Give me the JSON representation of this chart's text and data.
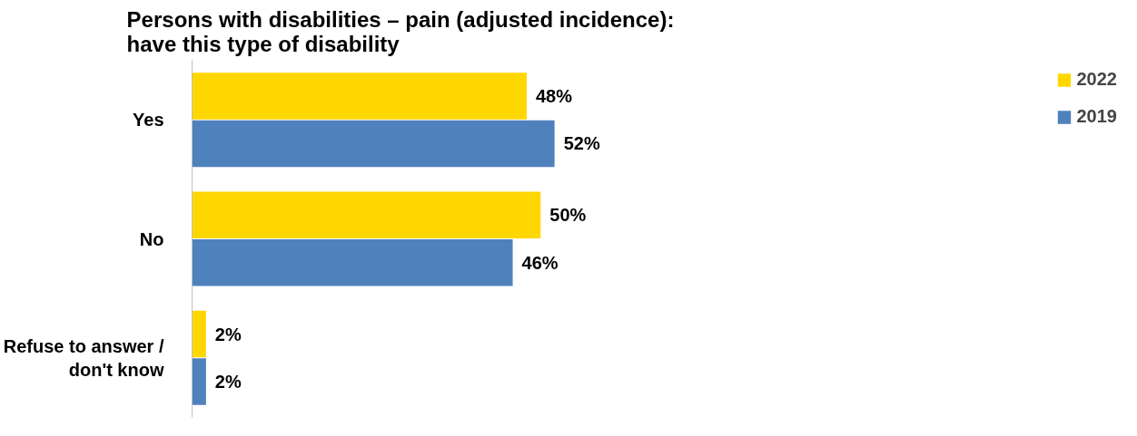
{
  "chart_data": {
    "type": "bar",
    "orientation": "horizontal",
    "title": "Persons with disabilities – pain (adjusted incidence):\nhave this type of disability",
    "categories": [
      "Yes",
      "No",
      "Refuse to answer / don't know"
    ],
    "series": [
      {
        "name": "2022",
        "color": "#ffd700",
        "values": [
          48,
          50,
          2
        ],
        "value_labels": [
          "48%",
          "50%",
          "2%"
        ]
      },
      {
        "name": "2019",
        "color": "#4f81bd",
        "values": [
          52,
          46,
          2
        ],
        "value_labels": [
          "52%",
          "46%",
          "2%"
        ]
      }
    ],
    "legend": "right",
    "grid": false,
    "tick_labels": "y"
  }
}
